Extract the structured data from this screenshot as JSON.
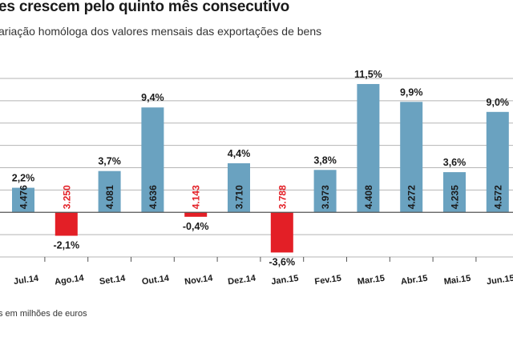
{
  "header": {
    "title": "es crescem pelo quinto mês consecutivo",
    "subtitle": "ariação homóloga dos valores mensais das exportações de bens"
  },
  "footnote": "s em milhões de euros",
  "colors": {
    "positive": "#6aa2c0",
    "negative": "#e31f26",
    "positive_value_text": "#1a1a1a",
    "negative_value_text": "#e31f26",
    "grid": "#b5b5b5",
    "zero_line": "#555555"
  },
  "chart_data": {
    "type": "bar",
    "categories": [
      "Jul.14",
      "Ago.14",
      "Set.14",
      "Out.14",
      "Nov.14",
      "Dez.14",
      "Jan.15",
      "Fev.15",
      "Mar.15",
      "Abr.15",
      "Mai.15",
      "Jun.15"
    ],
    "values": [
      2.2,
      -2.1,
      3.7,
      9.4,
      -0.4,
      4.4,
      -3.6,
      3.8,
      11.5,
      9.9,
      3.6,
      9.0
    ],
    "value_labels": [
      "2,2%",
      "-2,1%",
      "3,7%",
      "9,4%",
      "-0,4%",
      "4,4%",
      "-3,6%",
      "3,8%",
      "11,5%",
      "9,9%",
      "3,6%",
      "9,0%"
    ],
    "bar_inner_labels": [
      "4.476",
      "3.250",
      "4.081",
      "4.636",
      "4.143",
      "3.710",
      "3.788",
      "3.973",
      "4.408",
      "4.272",
      "4.235",
      "4.572"
    ],
    "ylim": [
      -4,
      12
    ],
    "yticks": [
      -4,
      -2,
      0,
      2,
      4,
      6,
      8,
      10,
      12
    ],
    "grid": true,
    "legend": "none"
  }
}
